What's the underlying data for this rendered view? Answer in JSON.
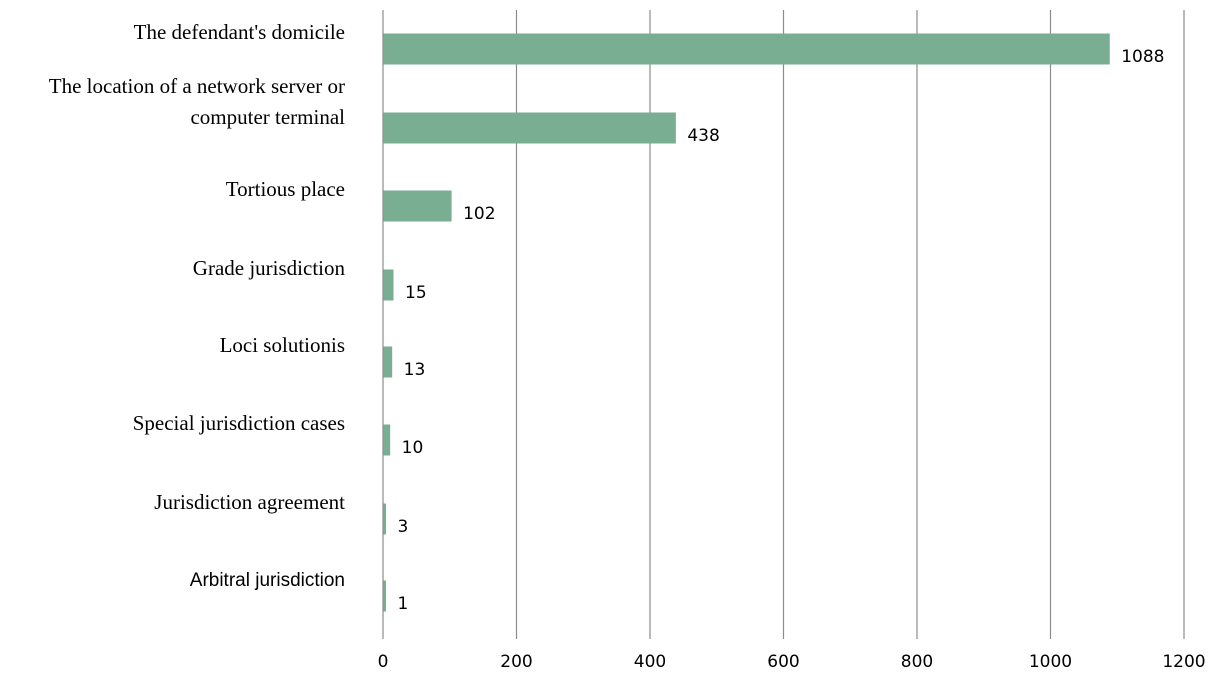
{
  "chart_data": {
    "type": "bar",
    "orientation": "horizontal",
    "title": "",
    "xlabel": "",
    "ylabel": "",
    "categories": [
      "The defendant's domicile",
      "The location of a network server or computer terminal",
      "Tortious place",
      "Grade jurisdiction",
      "Loci solutionis",
      "Special jurisdiction cases",
      "Jurisdiction agreement",
      "Arbitral jurisdiction"
    ],
    "category_label_lines": [
      [
        "The defendant's domicile"
      ],
      [
        "The location of a network server or",
        "computer terminal"
      ],
      [
        "Tortious place"
      ],
      [
        "Grade jurisdiction"
      ],
      [
        "Loci solutionis"
      ],
      [
        "Special jurisdiction cases"
      ],
      [
        "Jurisdiction agreement"
      ],
      [
        "Arbitral jurisdiction"
      ]
    ],
    "values": [
      1088,
      438,
      102,
      15,
      13,
      10,
      3,
      1
    ],
    "data_labels": [
      "1088",
      "438",
      "102",
      "15",
      "13",
      "10",
      "3",
      "1"
    ],
    "xlim": [
      0,
      1200
    ],
    "xticks": [
      0,
      200,
      400,
      600,
      800,
      1000,
      1200
    ],
    "xtick_labels": [
      "0",
      "200",
      "400",
      "600",
      "800",
      "1000",
      "1200"
    ],
    "grid": "vertical",
    "legend": "none",
    "bar_color": "#7aae93"
  }
}
